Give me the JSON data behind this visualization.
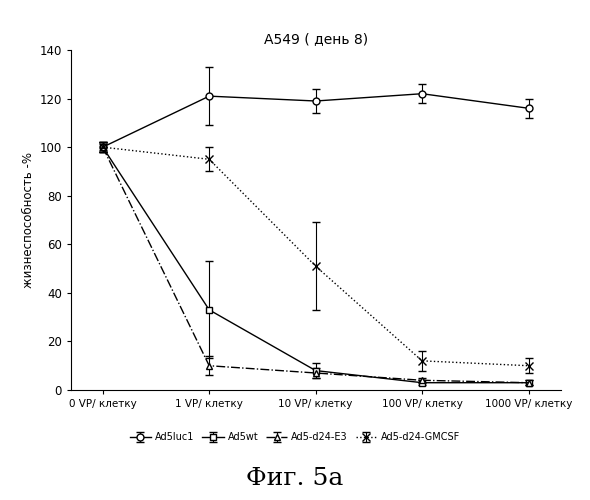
{
  "title": "A549 ( день 8)",
  "ylabel": "жизнеспособность -%",
  "xlabel_ticks": [
    "0 VP/ клетку",
    "1 VP/ клетку",
    "10 VP/ клетку",
    "100 VP/ клетку",
    "1000 VP/ клетку"
  ],
  "x_positions": [
    0,
    1,
    2,
    3,
    4
  ],
  "ylim": [
    0,
    140
  ],
  "yticks": [
    0,
    20,
    40,
    60,
    80,
    100,
    120,
    140
  ],
  "series": [
    {
      "label": "Ad5luc1",
      "y": [
        100,
        121,
        119,
        122,
        116
      ],
      "yerr": [
        2,
        12,
        5,
        4,
        4
      ],
      "color": "#000000",
      "linestyle": "-",
      "marker": "o",
      "markerfacecolor": "white",
      "markersize": 5,
      "linewidth": 1.0
    },
    {
      "label": "Ad5wt",
      "y": [
        100,
        33,
        8,
        3,
        3
      ],
      "yerr": [
        2,
        20,
        3,
        1,
        1
      ],
      "color": "#000000",
      "linestyle": "-",
      "marker": "s",
      "markerfacecolor": "white",
      "markersize": 5,
      "linewidth": 1.0
    },
    {
      "label": "Ad5-d24-E3",
      "y": [
        100,
        10,
        7,
        4,
        3
      ],
      "yerr": [
        2,
        4,
        2,
        1,
        1
      ],
      "color": "#000000",
      "linestyle": "-.",
      "marker": "^",
      "markerfacecolor": "white",
      "markersize": 5,
      "linewidth": 1.0
    },
    {
      "label": "Ad5-d24-GMCSF",
      "y": [
        100,
        95,
        51,
        12,
        10
      ],
      "yerr": [
        2,
        5,
        18,
        4,
        3
      ],
      "color": "#000000",
      "linestyle": ":",
      "marker": "x",
      "markerfacecolor": "black",
      "markersize": 6,
      "linewidth": 1.0
    }
  ],
  "fig_caption": "Фиг. 5а",
  "background_color": "#ffffff",
  "legend_labels": [
    "Ad5luc1",
    "Ad5wt",
    "Ad5-d24-E3",
    "Ad5-d24-GMCSF"
  ]
}
